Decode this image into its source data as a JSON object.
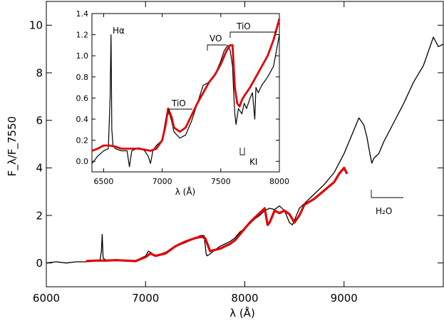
{
  "chart_data": [
    {
      "type": "line",
      "xlabel": "λ (Å)",
      "ylabel": "F_λ/F_7550",
      "xlim": [
        6000,
        10000
      ],
      "ylim": [
        -1,
        11
      ],
      "xticks": [
        6000,
        7000,
        8000,
        9000
      ],
      "yticks": [
        0,
        2,
        4,
        6,
        8,
        10
      ],
      "x_tick_labels": [
        "6000",
        "7000",
        "8000",
        "9000"
      ],
      "y_tick_labels": [
        "0",
        "2",
        "4",
        "6",
        "8",
        "10"
      ],
      "grid": false,
      "series": [
        {
          "color": "#000000",
          "x": [
            6000,
            6100,
            6200,
            6300,
            6400,
            6500,
            6540,
            6555,
            6563,
            6572,
            6600,
            6700,
            6800,
            6900,
            6950,
            7000,
            7030,
            7050,
            7100,
            7200,
            7300,
            7400,
            7500,
            7550,
            7590,
            7610,
            7620,
            7640,
            7670,
            7700,
            7750,
            7800,
            7850,
            7900,
            7950,
            8000,
            8050,
            8100,
            8150,
            8200,
            8250,
            8300,
            8350,
            8400,
            8450,
            8480,
            8500,
            8550,
            8600,
            8700,
            8800,
            8900,
            9000,
            9100,
            9150,
            9200,
            9230,
            9260,
            9280,
            9300,
            9350,
            9400,
            9500,
            9600,
            9700,
            9800,
            9850,
            9900,
            9950,
            10000
          ],
          "y": [
            0.0,
            0.05,
            0.0,
            0.05,
            0.05,
            0.08,
            0.1,
            0.5,
            1.2,
            0.2,
            0.12,
            0.12,
            0.12,
            0.05,
            0.2,
            0.3,
            0.5,
            0.45,
            0.3,
            0.45,
            0.7,
            0.85,
            1.05,
            1.15,
            1.15,
            0.4,
            0.3,
            0.35,
            0.45,
            0.55,
            0.7,
            0.8,
            0.9,
            1.05,
            1.3,
            1.45,
            1.65,
            1.85,
            2.0,
            2.2,
            2.3,
            2.25,
            2.4,
            2.2,
            1.7,
            1.6,
            1.8,
            2.3,
            2.5,
            2.9,
            3.3,
            3.8,
            4.6,
            5.6,
            6.1,
            5.8,
            5.3,
            4.6,
            4.2,
            4.4,
            4.6,
            5.1,
            5.9,
            6.7,
            7.6,
            8.3,
            8.9,
            9.5,
            9.1,
            9.2
          ]
        },
        {
          "color": "#e00000",
          "x": [
            6400,
            6500,
            6600,
            6700,
            6800,
            6900,
            7000,
            7050,
            7100,
            7200,
            7300,
            7400,
            7500,
            7560,
            7600,
            7650,
            7700,
            7750,
            7800,
            7850,
            7900,
            7950,
            8000,
            8050,
            8100,
            8150,
            8200,
            8230,
            8250,
            8300,
            8350,
            8400,
            8450,
            8500,
            8550,
            8600,
            8700,
            8800,
            8900,
            8950,
            9000,
            9030
          ],
          "y": [
            0.08,
            0.1,
            0.1,
            0.12,
            0.1,
            0.08,
            0.25,
            0.4,
            0.3,
            0.4,
            0.7,
            0.9,
            1.05,
            1.1,
            1.05,
            0.5,
            0.55,
            0.6,
            0.7,
            0.8,
            0.95,
            1.2,
            1.45,
            1.7,
            1.9,
            2.1,
            2.3,
            1.6,
            1.7,
            2.2,
            2.1,
            2.2,
            2.05,
            1.7,
            2.0,
            2.45,
            2.7,
            3.05,
            3.4,
            3.75,
            4.0,
            3.75
          ]
        }
      ],
      "annotations": [
        {
          "text": "H₂O",
          "x": 9450,
          "y": 2.3
        }
      ]
    },
    {
      "type": "line",
      "xlabel": "λ (Å)",
      "ylabel": "",
      "xlim": [
        6400,
        8000
      ],
      "ylim": [
        -0.1,
        1.4
      ],
      "xticks": [
        6500,
        7000,
        7500,
        8000
      ],
      "yticks": [
        0.0,
        0.2,
        0.4,
        0.6,
        0.8,
        1.0,
        1.2,
        1.4
      ],
      "x_tick_labels": [
        "6500",
        "7000",
        "7500",
        "8000"
      ],
      "y_tick_labels": [
        "0.0",
        "0.2",
        "0.4",
        "0.6",
        "0.8",
        "1.0",
        "1.2",
        "1.4"
      ],
      "grid": false,
      "series": [
        {
          "color": "#000000",
          "x": [
            6400,
            6450,
            6500,
            6540,
            6555,
            6563,
            6570,
            6580,
            6600,
            6650,
            6700,
            6720,
            6740,
            6800,
            6850,
            6880,
            6900,
            6920,
            6950,
            7000,
            7030,
            7050,
            7080,
            7100,
            7150,
            7200,
            7250,
            7300,
            7350,
            7400,
            7450,
            7500,
            7530,
            7560,
            7580,
            7600,
            7610,
            7620,
            7630,
            7650,
            7680,
            7700,
            7720,
            7750,
            7770,
            7790,
            7800,
            7820,
            7850,
            7900,
            7950,
            8000
          ],
          "y": [
            -0.02,
            0.05,
            0.1,
            0.12,
            0.6,
            1.2,
            0.3,
            0.15,
            0.12,
            0.1,
            0.1,
            -0.05,
            0.1,
            0.13,
            0.1,
            0.05,
            -0.02,
            0.1,
            0.15,
            0.2,
            0.4,
            0.5,
            0.38,
            0.28,
            0.22,
            0.25,
            0.38,
            0.55,
            0.72,
            0.75,
            0.82,
            0.95,
            1.05,
            1.1,
            1.05,
            0.9,
            0.65,
            0.45,
            0.35,
            0.5,
            0.45,
            0.55,
            0.5,
            0.6,
            0.65,
            0.4,
            0.7,
            0.65,
            0.72,
            0.8,
            0.9,
            1.2
          ]
        },
        {
          "color": "#e00000",
          "x": [
            6400,
            6450,
            6500,
            6550,
            6600,
            6650,
            6700,
            6800,
            6900,
            6950,
            7000,
            7030,
            7050,
            7080,
            7100,
            7150,
            7200,
            7300,
            7400,
            7450,
            7500,
            7550,
            7580,
            7600,
            7620,
            7640,
            7660,
            7680,
            7700,
            7750,
            7800,
            7850,
            7900,
            7950,
            8000
          ],
          "y": [
            0.1,
            0.12,
            0.15,
            0.15,
            0.14,
            0.12,
            0.12,
            0.12,
            0.1,
            0.12,
            0.2,
            0.35,
            0.5,
            0.42,
            0.32,
            0.28,
            0.32,
            0.55,
            0.75,
            0.82,
            0.92,
            1.05,
            1.1,
            1.1,
            0.7,
            0.55,
            0.52,
            0.58,
            0.62,
            0.7,
            0.8,
            0.9,
            1.0,
            1.15,
            1.35
          ]
        }
      ],
      "annotations": [
        {
          "text": "Hα",
          "x": 6600,
          "y": 1.25
        },
        {
          "text": "TiO",
          "x": 7060,
          "y": 0.62
        },
        {
          "text": "VO",
          "x": 7460,
          "y": 1.13
        },
        {
          "text": "TiO",
          "x": 7720,
          "y": 1.24
        },
        {
          "text": "KI",
          "x": 7780,
          "y": -0.05
        }
      ]
    }
  ]
}
